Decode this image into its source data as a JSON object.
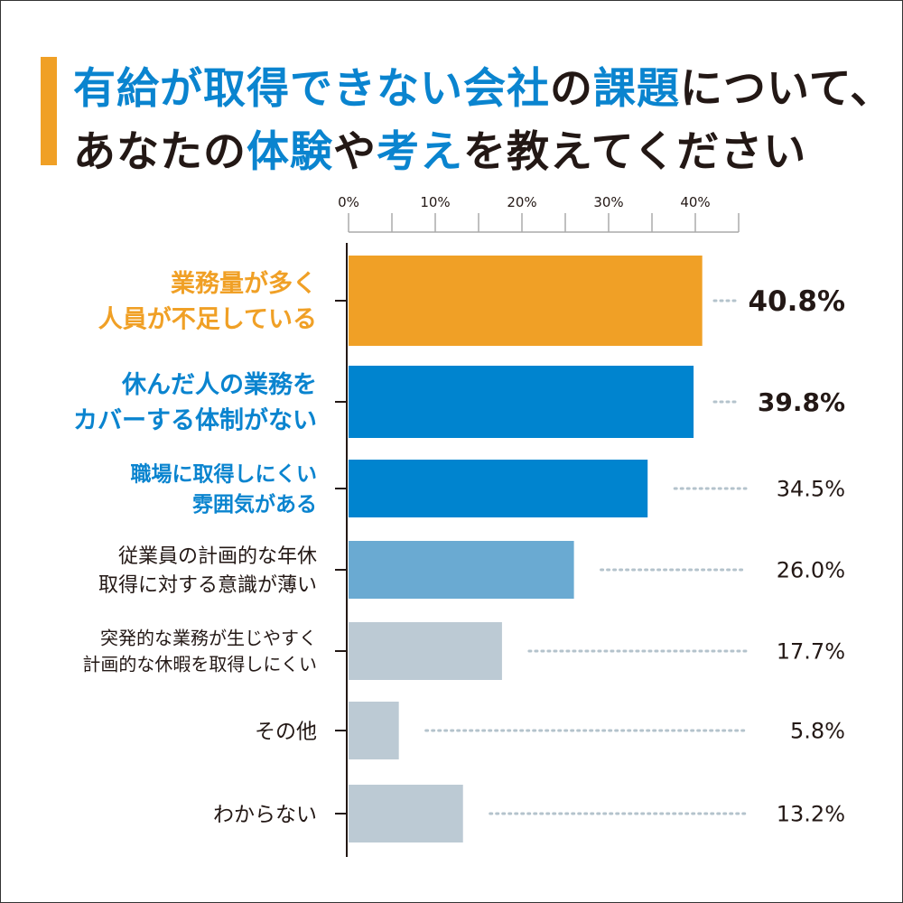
{
  "title": {
    "line1": [
      {
        "text": "有給が取得できない会社",
        "highlight": true
      },
      {
        "text": "の",
        "highlight": false
      },
      {
        "text": "課題",
        "highlight": true
      },
      {
        "text": "について、",
        "highlight": false
      }
    ],
    "line2": [
      {
        "text": "あなたの",
        "highlight": false
      },
      {
        "text": "体験",
        "highlight": true
      },
      {
        "text": "や",
        "highlight": false
      },
      {
        "text": "考え",
        "highlight": true
      },
      {
        "text": "を教えてください",
        "highlight": false
      }
    ]
  },
  "colors": {
    "accent": "#f0a026",
    "blue": "#0a84cf",
    "dark": "#231815"
  },
  "chart_data": {
    "type": "bar",
    "orientation": "horizontal",
    "title": "有給が取得できない会社の課題について、あなたの体験や考えを教えてください",
    "xlim": [
      0,
      45
    ],
    "xticks": [
      0,
      10,
      20,
      30,
      40
    ],
    "xtick_labels": [
      "0%",
      "10%",
      "20%",
      "30%",
      "40%"
    ],
    "minor_tick_step": 5,
    "categories": [
      [
        "業務量が多く",
        "人員が不足している"
      ],
      [
        "休んだ人の業務を",
        "カバーする体制がない"
      ],
      [
        "職場に取得しにくい",
        "雰囲気がある"
      ],
      [
        "従業員の計画的な年休",
        "取得に対する意識が薄い"
      ],
      [
        "突発的な業務が生じやすく",
        "計画的な休暇を取得しにくい"
      ],
      [
        "その他"
      ],
      [
        "わからない"
      ]
    ],
    "values": [
      40.8,
      39.8,
      34.5,
      26.0,
      17.7,
      5.8,
      13.2
    ],
    "value_labels": [
      "40.8%",
      "39.8%",
      "34.5%",
      "26.0%",
      "17.7%",
      "5.8%",
      "13.2%"
    ],
    "bar_colors": [
      "#f0a026",
      "#0084cf",
      "#0084cf",
      "#6aaad2",
      "#bccad4",
      "#bccad4",
      "#bccad4"
    ],
    "label_colors": [
      "#f0a026",
      "#0a84cf",
      "#0a84cf",
      "#231815",
      "#231815",
      "#231815",
      "#231815"
    ]
  }
}
